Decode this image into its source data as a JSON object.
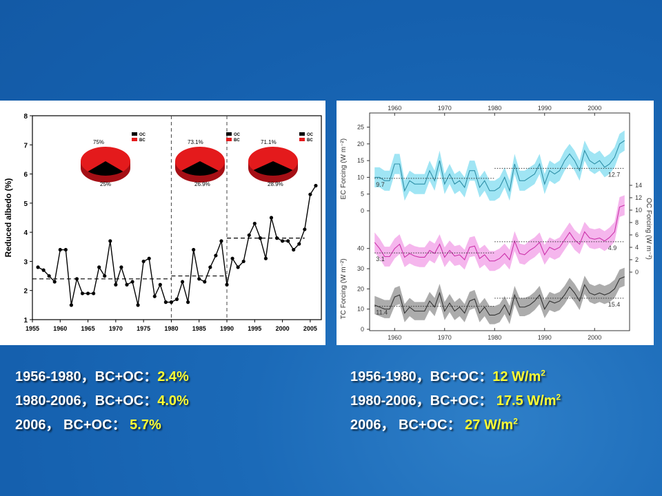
{
  "chart_data": [
    {
      "type": "line",
      "ylabel": "Reduced albedo (%)",
      "xlim": [
        1955,
        2007
      ],
      "ylim": [
        1,
        8
      ],
      "xticks": [
        1955,
        1960,
        1965,
        1970,
        1975,
        1980,
        1985,
        1990,
        1995,
        2000,
        2005
      ],
      "yticks": [
        1,
        2,
        3,
        4,
        5,
        6,
        7,
        8
      ],
      "x": [
        1956,
        1957,
        1958,
        1959,
        1960,
        1961,
        1962,
        1963,
        1964,
        1965,
        1966,
        1967,
        1968,
        1969,
        1970,
        1971,
        1972,
        1973,
        1974,
        1975,
        1976,
        1977,
        1978,
        1979,
        1980,
        1981,
        1982,
        1983,
        1984,
        1985,
        1986,
        1987,
        1988,
        1989,
        1990,
        1991,
        1992,
        1993,
        1994,
        1995,
        1996,
        1997,
        1998,
        1999,
        2000,
        2001,
        2002,
        2003,
        2004,
        2005,
        2006
      ],
      "values": [
        2.8,
        2.7,
        2.5,
        2.3,
        3.4,
        3.4,
        1.5,
        2.4,
        1.9,
        1.9,
        1.9,
        2.8,
        2.5,
        3.7,
        2.2,
        2.8,
        2.2,
        2.3,
        1.5,
        3.0,
        3.1,
        1.8,
        2.2,
        1.6,
        1.6,
        1.7,
        2.3,
        1.6,
        3.4,
        2.4,
        2.3,
        2.8,
        3.2,
        3.7,
        2.2,
        3.1,
        2.8,
        3.0,
        3.9,
        4.3,
        3.8,
        3.1,
        4.5,
        3.8,
        3.7,
        3.7,
        3.4,
        3.6,
        4.1,
        5.3,
        5.6
      ],
      "period_means": [
        {
          "from": 1955,
          "to": 1980,
          "value": 2.4
        },
        {
          "from": 1980,
          "to": 1990,
          "value": 2.5
        },
        {
          "from": 1990,
          "to": 2004,
          "value": 3.8
        }
      ],
      "period_dividers": [
        1980,
        1990
      ],
      "pies": [
        {
          "top_label": "75%",
          "bottom_label": "25%",
          "legend": [
            "OC",
            "BC"
          ],
          "bc_fraction": 0.75
        },
        {
          "top_label": "73.1%",
          "bottom_label": "26.9%",
          "legend": [
            "OC",
            "BC"
          ],
          "bc_fraction": 0.731
        },
        {
          "top_label": "71.1%",
          "bottom_label": "28.9%",
          "legend": [
            "OC",
            "BC"
          ],
          "bc_fraction": 0.711
        }
      ],
      "colors": {
        "line": "#000000",
        "bc": "#e41a1c",
        "oc": "#000000"
      }
    },
    {
      "type": "area",
      "xlim": [
        1955,
        2007
      ],
      "xticks": [
        1960,
        1970,
        1980,
        1990,
        2000
      ],
      "x": [
        1956,
        1957,
        1958,
        1959,
        1960,
        1961,
        1962,
        1963,
        1964,
        1965,
        1966,
        1967,
        1968,
        1969,
        1970,
        1971,
        1972,
        1973,
        1974,
        1975,
        1976,
        1977,
        1978,
        1979,
        1980,
        1981,
        1982,
        1983,
        1984,
        1985,
        1986,
        1987,
        1988,
        1989,
        1990,
        1991,
        1992,
        1993,
        1994,
        1995,
        1996,
        1997,
        1998,
        1999,
        2000,
        2001,
        2002,
        2003,
        2004,
        2005,
        2006
      ],
      "panels": [
        {
          "name": "ec",
          "ylabel": "EC Forcing (W m⁻²)",
          "axis_side": "left",
          "yticks": [
            0,
            5,
            10,
            15,
            20,
            25
          ],
          "ylim": [
            0,
            28
          ],
          "values": [
            10,
            10,
            9,
            9,
            14,
            14,
            6,
            9,
            8,
            8,
            8,
            12,
            9,
            15,
            8,
            11,
            8,
            9,
            7,
            12,
            12,
            7,
            9,
            6,
            6,
            7,
            10,
            6,
            14,
            9,
            9,
            10,
            11,
            14,
            8,
            12,
            11,
            12,
            15,
            17,
            15,
            12,
            18,
            15,
            14,
            15,
            13,
            14,
            16,
            20,
            21
          ],
          "band": 3,
          "color": "#2e90a8",
          "band_color": "#8fe0f2",
          "means": [
            {
              "from": 1956,
              "to": 1980,
              "value": 9.7,
              "label": "9.7"
            },
            {
              "from": 1980,
              "to": 2006,
              "value": 12.7,
              "label": "12.7"
            }
          ]
        },
        {
          "name": "oc",
          "ylabel": "OC Forcing (W m⁻²)",
          "axis_side": "right",
          "yticks": [
            0,
            2,
            4,
            6,
            8,
            10,
            12,
            14
          ],
          "ylim": [
            -1,
            15
          ],
          "values": [
            4.8,
            3.8,
            2.5,
            2.5,
            3.8,
            4.5,
            2.4,
            3.0,
            2.6,
            2.4,
            2.4,
            3.5,
            3.0,
            4.5,
            2.4,
            3.5,
            2.6,
            2.8,
            2.0,
            4.0,
            4.2,
            2.2,
            2.8,
            1.8,
            1.8,
            2.2,
            3.0,
            2.0,
            5.0,
            3.0,
            2.8,
            3.5,
            4.0,
            4.8,
            2.8,
            4.0,
            3.6,
            4.0,
            5.2,
            6.4,
            5.2,
            4.5,
            6.5,
            5.5,
            5.3,
            5.5,
            5.0,
            5.6,
            6.5,
            10.5,
            10.8
          ],
          "band": 1.6,
          "color": "#cc33aa",
          "band_color": "#f3a9ea",
          "means": [
            {
              "from": 1956,
              "to": 1980,
              "value": 3.1,
              "label": "3.1"
            },
            {
              "from": 1980,
              "to": 2006,
              "value": 4.9,
              "label": "4.9"
            }
          ]
        },
        {
          "name": "tc",
          "ylabel": "TC Forcing (W m⁻²)",
          "axis_side": "left",
          "yticks": [
            0,
            10,
            20,
            30,
            40
          ],
          "ylim": [
            0,
            44
          ],
          "values": [
            12,
            11,
            10,
            10,
            16,
            17,
            8,
            11,
            9,
            9,
            9,
            14,
            11,
            18,
            9,
            13,
            9,
            11,
            8,
            14,
            15,
            8,
            11,
            7,
            7,
            8,
            12,
            7,
            17,
            11,
            11,
            12,
            14,
            17,
            10,
            14,
            13,
            14,
            17,
            21,
            18,
            14,
            22,
            18,
            17,
            18,
            17,
            18,
            20,
            25,
            26
          ],
          "band": 4.5,
          "color": "#333333",
          "band_color": "#9e9e9e",
          "means": [
            {
              "from": 1956,
              "to": 1980,
              "value": 11.4,
              "label": "11.4"
            },
            {
              "from": 1980,
              "to": 2006,
              "value": 15.4,
              "label": "15.4"
            }
          ]
        }
      ]
    }
  ],
  "captions": {
    "left": [
      {
        "prefix": "1956-1980，BC+OC：",
        "value": "2.4%"
      },
      {
        "prefix": "1980-2006，BC+OC：",
        "value": "4.0%"
      },
      {
        "prefix": "2006， BC+OC： ",
        "value": "5.7%"
      }
    ],
    "right": [
      {
        "prefix": "1956-1980，BC+OC：",
        "value": "12 W/m",
        "sup": "2"
      },
      {
        "prefix": "1980-2006，BC+OC： ",
        "value": "17.5 W/m",
        "sup": "2"
      },
      {
        "prefix": "2006， BC+OC： ",
        "value": "27 W/m",
        "sup": "2"
      }
    ]
  }
}
